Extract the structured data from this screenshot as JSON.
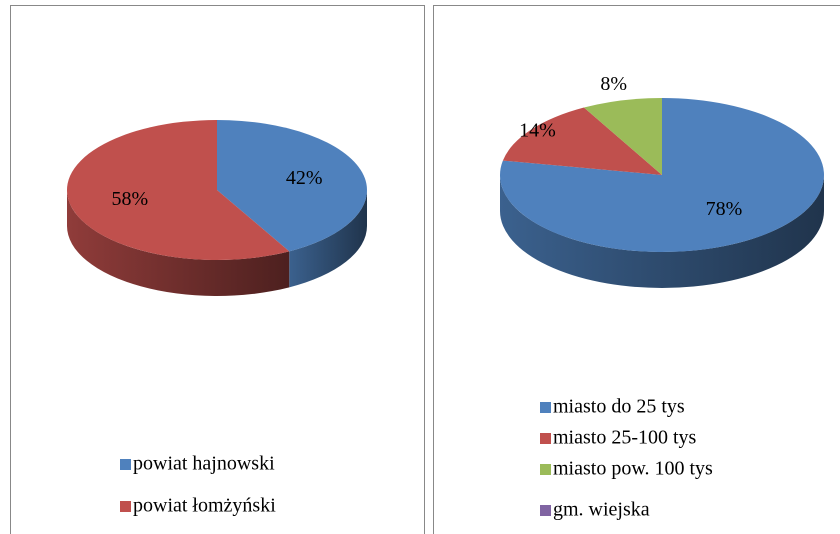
{
  "chart_data": [
    {
      "type": "pie",
      "categories": [
        "powiat hajnowski",
        "powiat łomżyński"
      ],
      "values": [
        42,
        58
      ],
      "value_labels": [
        "42%",
        "58%"
      ],
      "colors": [
        "#4f81bd",
        "#c0504d"
      ]
    },
    {
      "type": "pie",
      "categories": [
        "miasto do 25 tys",
        "miasto 25-100 tys",
        "miasto pow. 100 tys",
        "gm. wiejska"
      ],
      "values": [
        78,
        14,
        8,
        0
      ],
      "value_labels": [
        "78%",
        "14%",
        "8%",
        null
      ],
      "colors": [
        "#4f81bd",
        "#c0504d",
        "#9bbb59",
        "#8064a2"
      ]
    }
  ]
}
